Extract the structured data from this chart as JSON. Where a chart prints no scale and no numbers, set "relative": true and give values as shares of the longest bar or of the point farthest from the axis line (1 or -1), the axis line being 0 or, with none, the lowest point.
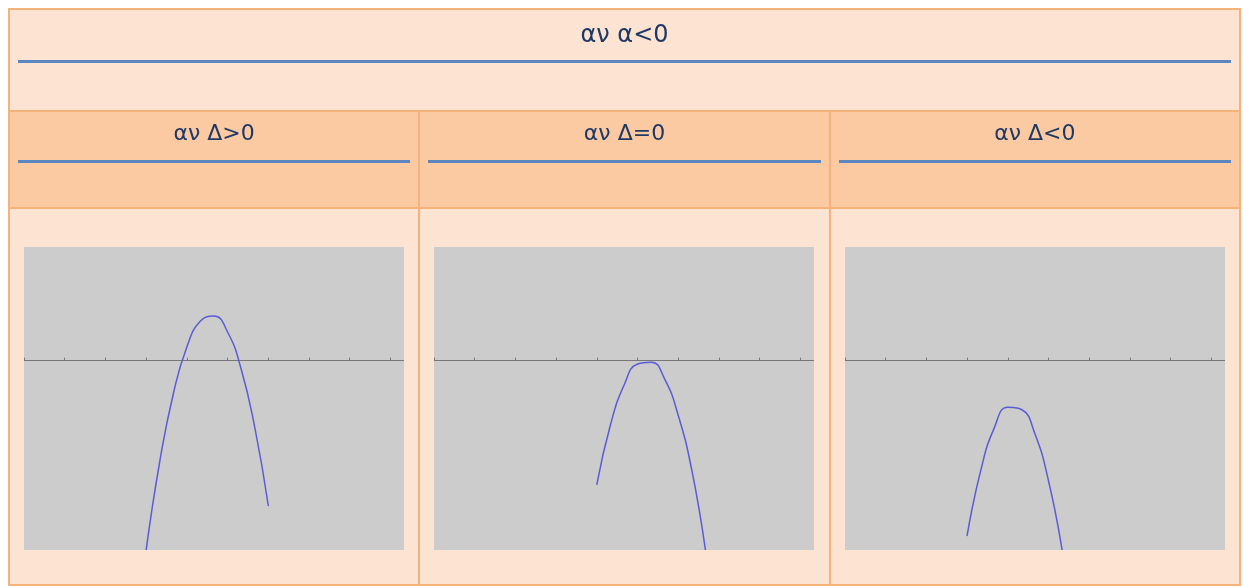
{
  "chart_data": [
    {
      "type": "line",
      "title": "αν Δ>0",
      "annotations": [
        "αν α<0"
      ],
      "relative": true,
      "marker": "none",
      "line_style": "solid",
      "categories": [
        null,
        null,
        null,
        null,
        null,
        null,
        null,
        null,
        null,
        null,
        null,
        null,
        null,
        null,
        null,
        null,
        null,
        null,
        null,
        null,
        null,
        null,
        null,
        null,
        null,
        null,
        null,
        null,
        null
      ],
      "series": [
        {
          "color": "#5b5bd6",
          "values": [
            null,
            null,
            null,
            null,
            null,
            null,
            null,
            null,
            null,
            -1,
            -0.534,
            -0.176,
            0.072,
            0.209,
            0.235,
            0.151,
            -0.044,
            -0.351,
            -0.765,
            null,
            null,
            null,
            null,
            null,
            null,
            null,
            null,
            null,
            null
          ]
        }
      ]
    },
    {
      "type": "line",
      "title": "αν Δ=0",
      "relative": true,
      "marker": "none",
      "line_style": "solid",
      "categories": [
        null,
        null,
        null,
        null,
        null,
        null,
        null,
        null,
        null,
        null,
        null,
        null,
        null,
        null,
        null,
        null,
        null,
        null,
        null,
        null,
        null,
        null,
        null,
        null,
        null,
        null,
        null,
        null,
        null
      ],
      "series": [
        {
          "color": "#5b5bd6",
          "values": [
            null,
            null,
            null,
            null,
            null,
            null,
            null,
            null,
            null,
            null,
            null,
            null,
            -0.653,
            -0.34,
            -0.13,
            -0.018,
            -0.008,
            -0.098,
            -0.29,
            -0.58,
            -1,
            null,
            null,
            null,
            null,
            null,
            null,
            null,
            null
          ]
        }
      ]
    },
    {
      "type": "line",
      "title": "αν Δ<0",
      "relative": true,
      "marker": "none",
      "line_style": "solid",
      "categories": [
        null,
        null,
        null,
        null,
        null,
        null,
        null,
        null,
        null,
        null,
        null,
        null,
        null,
        null,
        null,
        null,
        null,
        null,
        null,
        null,
        null,
        null,
        null,
        null,
        null,
        null,
        null,
        null,
        null
      ],
      "series": [
        {
          "color": "#5b5bd6",
          "values": [
            null,
            null,
            null,
            null,
            null,
            null,
            null,
            null,
            null,
            -0.923,
            -0.581,
            -0.355,
            -0.246,
            -0.258,
            -0.388,
            -0.636,
            -1,
            null,
            null,
            null,
            null,
            null,
            null,
            null,
            null,
            null,
            null,
            null,
            null
          ]
        }
      ]
    }
  ]
}
